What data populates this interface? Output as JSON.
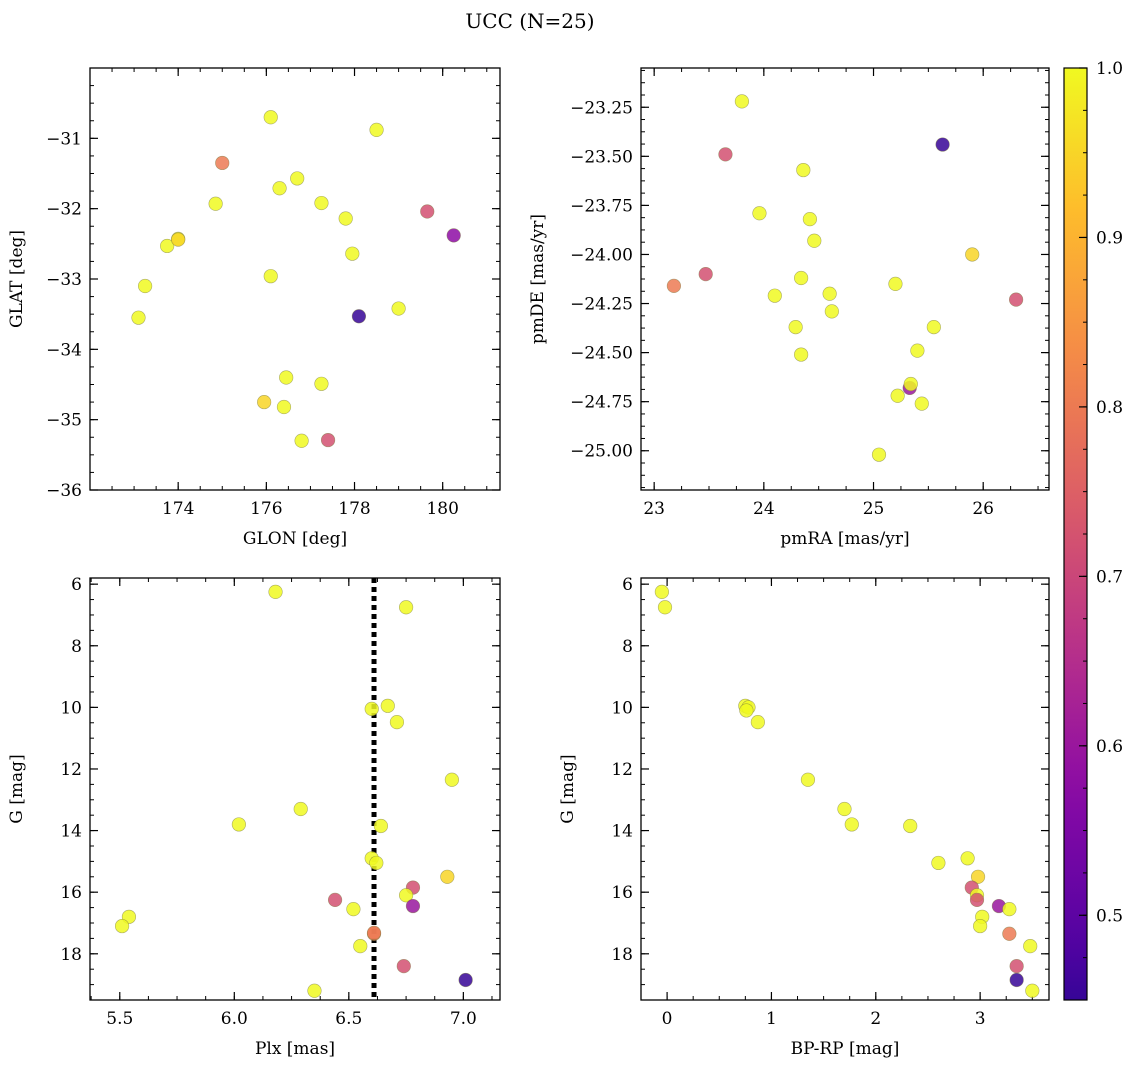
{
  "figure_title": "UCC (N=25)",
  "colorbar": {
    "range": [
      0.45,
      1.0
    ],
    "ticks": [
      0.5,
      0.6,
      0.7,
      0.8,
      0.9,
      1.0
    ],
    "tick_labels": [
      "0.5",
      "0.6",
      "0.7",
      "0.8",
      "0.9",
      "1.0"
    ],
    "colormap": "plasma"
  },
  "chart_data": [
    {
      "type": "scatter",
      "xlabel": "GLON [deg]",
      "ylabel": "GLAT [deg]",
      "xlim": [
        172.0,
        181.3
      ],
      "ylim": [
        -36.0,
        -30.0
      ],
      "y_inverted": false,
      "xticks": [
        174,
        176,
        178,
        180
      ],
      "xtick_labels": [
        "174",
        "176",
        "178",
        "180"
      ],
      "yticks": [
        -36,
        -35,
        -34,
        -33,
        -32,
        -31
      ],
      "ytick_labels": [
        "−36",
        "−35",
        "−34",
        "−33",
        "−32",
        "−31"
      ],
      "grid": false,
      "points": [
        {
          "x": 176.1,
          "y": -30.7,
          "c": 1.0
        },
        {
          "x": 178.5,
          "y": -30.88,
          "c": 1.0
        },
        {
          "x": 175.0,
          "y": -31.35,
          "c": 0.8
        },
        {
          "x": 176.7,
          "y": -31.57,
          "c": 1.0
        },
        {
          "x": 176.3,
          "y": -31.71,
          "c": 1.0
        },
        {
          "x": 174.85,
          "y": -31.93,
          "c": 1.0
        },
        {
          "x": 177.25,
          "y": -31.92,
          "c": 1.0
        },
        {
          "x": 177.8,
          "y": -32.14,
          "c": 1.0
        },
        {
          "x": 179.65,
          "y": -32.04,
          "c": 0.72
        },
        {
          "x": 174.0,
          "y": -32.43,
          "c": 1.0
        },
        {
          "x": 173.75,
          "y": -32.53,
          "c": 1.0
        },
        {
          "x": 174.0,
          "y": -32.44,
          "c": 0.95
        },
        {
          "x": 180.25,
          "y": -32.38,
          "c": 0.58
        },
        {
          "x": 177.95,
          "y": -32.64,
          "c": 1.0
        },
        {
          "x": 176.1,
          "y": -32.96,
          "c": 1.0
        },
        {
          "x": 173.25,
          "y": -33.1,
          "c": 1.0
        },
        {
          "x": 173.1,
          "y": -33.55,
          "c": 1.0
        },
        {
          "x": 178.1,
          "y": -33.53,
          "c": 0.45
        },
        {
          "x": 179.0,
          "y": -33.42,
          "c": 1.0
        },
        {
          "x": 176.45,
          "y": -34.4,
          "c": 1.0
        },
        {
          "x": 177.25,
          "y": -34.49,
          "c": 1.0
        },
        {
          "x": 175.95,
          "y": -34.75,
          "c": 0.95
        },
        {
          "x": 176.4,
          "y": -34.82,
          "c": 1.0
        },
        {
          "x": 176.8,
          "y": -35.3,
          "c": 1.0
        },
        {
          "x": 177.4,
          "y": -35.29,
          "c": 0.72
        }
      ]
    },
    {
      "type": "scatter",
      "xlabel": "pmRA [mas/yr]",
      "ylabel": "pmDE [mas/yr]",
      "xlim": [
        22.88,
        26.6
      ],
      "ylim": [
        -25.2,
        -23.05
      ],
      "y_inverted": false,
      "xticks": [
        23,
        24,
        25,
        26
      ],
      "xtick_labels": [
        "23",
        "24",
        "25",
        "26"
      ],
      "yticks": [
        -25.0,
        -24.75,
        -24.5,
        -24.25,
        -24.0,
        -23.75,
        -23.5,
        -23.25
      ],
      "ytick_labels": [
        "−25.00",
        "−24.75",
        "−24.50",
        "−24.25",
        "−24.00",
        "−23.75",
        "−23.50",
        "−23.25"
      ],
      "grid": false,
      "points": [
        {
          "x": 23.8,
          "y": -23.22,
          "c": 1.0
        },
        {
          "x": 23.65,
          "y": -23.49,
          "c": 0.72
        },
        {
          "x": 25.63,
          "y": -23.44,
          "c": 0.45
        },
        {
          "x": 24.36,
          "y": -23.57,
          "c": 1.0
        },
        {
          "x": 23.96,
          "y": -23.79,
          "c": 1.0
        },
        {
          "x": 24.42,
          "y": -23.82,
          "c": 1.0
        },
        {
          "x": 24.46,
          "y": -23.93,
          "c": 1.0
        },
        {
          "x": 25.9,
          "y": -24.0,
          "c": 0.95
        },
        {
          "x": 23.47,
          "y": -24.1,
          "c": 0.72
        },
        {
          "x": 23.18,
          "y": -24.16,
          "c": 0.8
        },
        {
          "x": 24.34,
          "y": -24.12,
          "c": 1.0
        },
        {
          "x": 25.2,
          "y": -24.15,
          "c": 1.0
        },
        {
          "x": 24.1,
          "y": -24.21,
          "c": 1.0
        },
        {
          "x": 24.6,
          "y": -24.2,
          "c": 1.0
        },
        {
          "x": 26.3,
          "y": -24.23,
          "c": 0.72
        },
        {
          "x": 24.62,
          "y": -24.29,
          "c": 1.0
        },
        {
          "x": 24.29,
          "y": -24.37,
          "c": 1.0
        },
        {
          "x": 25.55,
          "y": -24.37,
          "c": 1.0
        },
        {
          "x": 24.34,
          "y": -24.51,
          "c": 1.0
        },
        {
          "x": 25.4,
          "y": -24.49,
          "c": 1.0
        },
        {
          "x": 25.33,
          "y": -24.68,
          "c": 0.6
        },
        {
          "x": 25.34,
          "y": -24.66,
          "c": 1.0
        },
        {
          "x": 25.22,
          "y": -24.72,
          "c": 1.0
        },
        {
          "x": 25.44,
          "y": -24.76,
          "c": 1.0
        },
        {
          "x": 25.05,
          "y": -25.02,
          "c": 1.0
        }
      ]
    },
    {
      "type": "scatter",
      "xlabel": "Plx [mas]",
      "ylabel": "G [mag]",
      "xlim": [
        5.37,
        7.16
      ],
      "ylim": [
        5.8,
        19.5
      ],
      "y_inverted": true,
      "xticks": [
        5.5,
        6.0,
        6.5,
        7.0
      ],
      "xtick_labels": [
        "5.5",
        "6.0",
        "6.5",
        "7.0"
      ],
      "yticks": [
        6,
        8,
        10,
        12,
        14,
        16,
        18
      ],
      "ytick_labels": [
        "6",
        "8",
        "10",
        "12",
        "14",
        "16",
        "18"
      ],
      "grid": false,
      "vline": {
        "x": 6.61,
        "style": "dotted"
      },
      "points": [
        {
          "x": 6.18,
          "y": 6.25,
          "c": 1.0
        },
        {
          "x": 6.75,
          "y": 6.75,
          "c": 1.0
        },
        {
          "x": 6.67,
          "y": 9.95,
          "c": 1.0
        },
        {
          "x": 6.6,
          "y": 10.05,
          "c": 1.0
        },
        {
          "x": 6.71,
          "y": 10.48,
          "c": 1.0
        },
        {
          "x": 6.95,
          "y": 12.35,
          "c": 1.0
        },
        {
          "x": 6.29,
          "y": 13.3,
          "c": 1.0
        },
        {
          "x": 6.02,
          "y": 13.8,
          "c": 1.0
        },
        {
          "x": 6.64,
          "y": 13.85,
          "c": 1.0
        },
        {
          "x": 6.6,
          "y": 14.9,
          "c": 1.0
        },
        {
          "x": 6.62,
          "y": 15.05,
          "c": 1.0
        },
        {
          "x": 6.93,
          "y": 15.5,
          "c": 0.95
        },
        {
          "x": 6.78,
          "y": 15.85,
          "c": 0.72
        },
        {
          "x": 6.75,
          "y": 16.1,
          "c": 1.0
        },
        {
          "x": 6.44,
          "y": 16.25,
          "c": 0.72
        },
        {
          "x": 6.78,
          "y": 16.45,
          "c": 0.6
        },
        {
          "x": 6.52,
          "y": 16.55,
          "c": 1.0
        },
        {
          "x": 5.54,
          "y": 16.8,
          "c": 1.0
        },
        {
          "x": 5.51,
          "y": 17.1,
          "c": 1.0
        },
        {
          "x": 6.61,
          "y": 17.35,
          "c": 0.8
        },
        {
          "x": 6.55,
          "y": 17.75,
          "c": 1.0
        },
        {
          "x": 6.74,
          "y": 18.4,
          "c": 0.72
        },
        {
          "x": 7.01,
          "y": 18.85,
          "c": 0.45
        },
        {
          "x": 6.35,
          "y": 19.2,
          "c": 1.0
        },
        {
          "x": 6.61,
          "y": 17.32,
          "c": 0.8
        }
      ]
    },
    {
      "type": "scatter",
      "xlabel": "BP-RP [mag]",
      "ylabel": "G [mag]",
      "xlim": [
        -0.25,
        3.66
      ],
      "ylim": [
        5.8,
        19.5
      ],
      "y_inverted": true,
      "xticks": [
        0,
        1,
        2,
        3
      ],
      "xtick_labels": [
        "0",
        "1",
        "2",
        "3"
      ],
      "yticks": [
        6,
        8,
        10,
        12,
        14,
        16,
        18
      ],
      "ytick_labels": [
        "6",
        "8",
        "10",
        "12",
        "14",
        "16",
        "18"
      ],
      "grid": false,
      "points": [
        {
          "x": -0.05,
          "y": 6.25,
          "c": 1.0
        },
        {
          "x": -0.02,
          "y": 6.75,
          "c": 1.0
        },
        {
          "x": 0.75,
          "y": 9.95,
          "c": 1.0
        },
        {
          "x": 0.78,
          "y": 10.0,
          "c": 1.0
        },
        {
          "x": 0.76,
          "y": 10.1,
          "c": 1.0
        },
        {
          "x": 0.87,
          "y": 10.48,
          "c": 1.0
        },
        {
          "x": 1.35,
          "y": 12.35,
          "c": 1.0
        },
        {
          "x": 1.7,
          "y": 13.3,
          "c": 1.0
        },
        {
          "x": 1.77,
          "y": 13.8,
          "c": 1.0
        },
        {
          "x": 2.33,
          "y": 13.85,
          "c": 1.0
        },
        {
          "x": 2.6,
          "y": 15.05,
          "c": 1.0
        },
        {
          "x": 2.88,
          "y": 14.9,
          "c": 1.0
        },
        {
          "x": 2.98,
          "y": 15.5,
          "c": 0.95
        },
        {
          "x": 2.92,
          "y": 15.85,
          "c": 0.72
        },
        {
          "x": 2.97,
          "y": 16.1,
          "c": 1.0
        },
        {
          "x": 2.97,
          "y": 16.25,
          "c": 0.72
        },
        {
          "x": 3.18,
          "y": 16.45,
          "c": 0.6
        },
        {
          "x": 3.28,
          "y": 16.55,
          "c": 1.0
        },
        {
          "x": 3.02,
          "y": 16.8,
          "c": 1.0
        },
        {
          "x": 3.0,
          "y": 17.1,
          "c": 1.0
        },
        {
          "x": 3.28,
          "y": 17.35,
          "c": 0.8
        },
        {
          "x": 3.48,
          "y": 17.75,
          "c": 1.0
        },
        {
          "x": 3.35,
          "y": 18.4,
          "c": 0.72
        },
        {
          "x": 3.35,
          "y": 18.85,
          "c": 0.45
        },
        {
          "x": 3.5,
          "y": 19.2,
          "c": 1.0
        }
      ]
    }
  ]
}
